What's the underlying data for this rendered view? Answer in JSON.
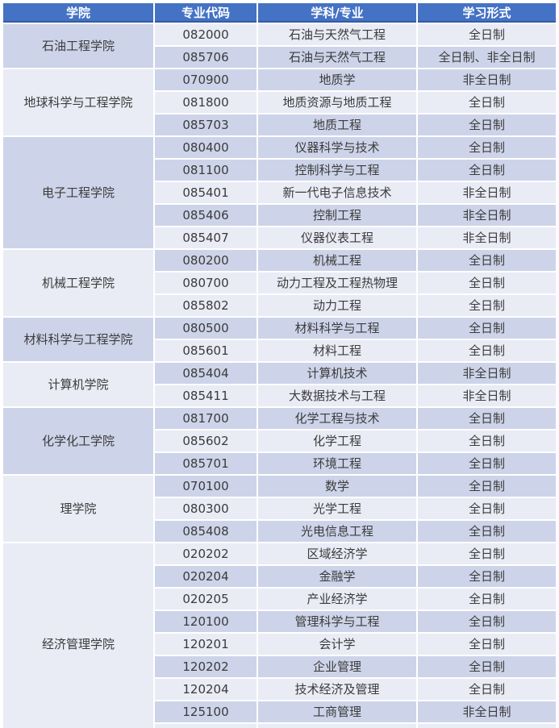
{
  "colors": {
    "header_bg": "#4472C4",
    "header_text": "#FFFFFF",
    "row_dark": "#CDD4E9",
    "row_light": "#E9EBF5",
    "grid_line": "#FFFFFF",
    "body_text": "#3B3B3B"
  },
  "table": {
    "columns": [
      "学院",
      "专业代码",
      "学科/专业",
      "学习形式"
    ],
    "groups": [
      {
        "college": "石油工程学院",
        "shade": "dark",
        "rows": [
          {
            "code": "082000",
            "major": "石油与天然气工程",
            "form": "全日制",
            "band": "light"
          },
          {
            "code": "085706",
            "major": "石油与天然气工程",
            "form": "全日制、非全日制",
            "band": "dark"
          }
        ]
      },
      {
        "college": "地球科学与工程学院",
        "shade": "light",
        "rows": [
          {
            "code": "070900",
            "major": "地质学",
            "form": "非全日制",
            "band": "dark"
          },
          {
            "code": "081800",
            "major": "地质资源与地质工程",
            "form": "全日制",
            "band": "light"
          },
          {
            "code": "085703",
            "major": "地质工程",
            "form": "全日制",
            "band": "dark"
          }
        ]
      },
      {
        "college": "电子工程学院",
        "shade": "dark",
        "rows": [
          {
            "code": "080400",
            "major": "仪器科学与技术",
            "form": "全日制",
            "band": "dark"
          },
          {
            "code": "081100",
            "major": "控制科学与工程",
            "form": "全日制",
            "band": "dark"
          },
          {
            "code": "085401",
            "major": "新一代电子信息技术",
            "form": "非全日制",
            "band": "light"
          },
          {
            "code": "085406",
            "major": "控制工程",
            "form": "非全日制",
            "band": "dark"
          },
          {
            "code": "085407",
            "major": "仪器仪表工程",
            "form": "非全日制",
            "band": "light"
          }
        ]
      },
      {
        "college": "机械工程学院",
        "shade": "light",
        "rows": [
          {
            "code": "080200",
            "major": "机械工程",
            "form": "全日制",
            "band": "dark"
          },
          {
            "code": "080700",
            "major": "动力工程及工程热物理",
            "form": "全日制",
            "band": "light"
          },
          {
            "code": "085802",
            "major": "动力工程",
            "form": "全日制",
            "band": "light"
          }
        ]
      },
      {
        "college": "材料科学与工程学院",
        "shade": "dark",
        "rows": [
          {
            "code": "080500",
            "major": "材料科学与工程",
            "form": "全日制",
            "band": "dark"
          },
          {
            "code": "085601",
            "major": "材料工程",
            "form": "全日制",
            "band": "light"
          }
        ]
      },
      {
        "college": "计算机学院",
        "shade": "light",
        "rows": [
          {
            "code": "085404",
            "major": "计算机技术",
            "form": "非全日制",
            "band": "dark"
          },
          {
            "code": "085411",
            "major": "大数据技术与工程",
            "form": "非全日制",
            "band": "light"
          }
        ]
      },
      {
        "college": "化学化工学院",
        "shade": "dark",
        "rows": [
          {
            "code": "081700",
            "major": "化学工程与技术",
            "form": "全日制",
            "band": "dark"
          },
          {
            "code": "085602",
            "major": "化学工程",
            "form": "全日制",
            "band": "light"
          },
          {
            "code": "085701",
            "major": "环境工程",
            "form": "全日制",
            "band": "dark"
          }
        ]
      },
      {
        "college": "理学院",
        "shade": "light",
        "rows": [
          {
            "code": "070100",
            "major": "数学",
            "form": "全日制",
            "band": "dark"
          },
          {
            "code": "080300",
            "major": "光学工程",
            "form": "全日制",
            "band": "light"
          },
          {
            "code": "085408",
            "major": "光电信息工程",
            "form": "全日制",
            "band": "dark"
          }
        ]
      },
      {
        "college": "经济管理学院",
        "shade": "light",
        "rows": [
          {
            "code": "020202",
            "major": "区域经济学",
            "form": "全日制",
            "band": "light"
          },
          {
            "code": "020204",
            "major": "金融学",
            "form": "全日制",
            "band": "dark"
          },
          {
            "code": "020205",
            "major": "产业经济学",
            "form": "全日制",
            "band": "light"
          },
          {
            "code": "120100",
            "major": "管理科学与工程",
            "form": "全日制",
            "band": "dark"
          },
          {
            "code": "120201",
            "major": "会计学",
            "form": "全日制",
            "band": "light"
          },
          {
            "code": "120202",
            "major": "企业管理",
            "form": "全日制",
            "band": "dark"
          },
          {
            "code": "120204",
            "major": "技术经济及管理",
            "form": "全日制",
            "band": "light"
          },
          {
            "code": "125100",
            "major": "工商管理",
            "form": "非全日制",
            "band": "dark"
          }
        ]
      }
    ],
    "partial_bottom_row": {
      "band": "light"
    }
  }
}
